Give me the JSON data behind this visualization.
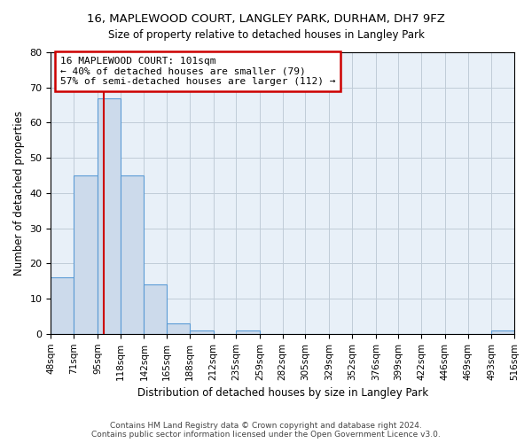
{
  "title": "16, MAPLEWOOD COURT, LANGLEY PARK, DURHAM, DH7 9FZ",
  "subtitle": "Size of property relative to detached houses in Langley Park",
  "xlabel": "Distribution of detached houses by size in Langley Park",
  "ylabel": "Number of detached properties",
  "bin_edges": [
    48,
    71,
    95,
    118,
    142,
    165,
    188,
    212,
    235,
    259,
    282,
    305,
    329,
    352,
    376,
    399,
    422,
    446,
    469,
    493,
    516
  ],
  "bin_counts": [
    16,
    45,
    67,
    45,
    14,
    3,
    1,
    0,
    1,
    0,
    0,
    0,
    0,
    0,
    0,
    0,
    0,
    0,
    0,
    1
  ],
  "bar_color": "#ccdaeb",
  "bar_edge_color": "#5b9bd5",
  "property_size": 101,
  "vline_color": "#cc0000",
  "annotation_box_color": "#cc0000",
  "annotation_line1": "16 MAPLEWOOD COURT: 101sqm",
  "annotation_line2": "← 40% of detached houses are smaller (79)",
  "annotation_line3": "57% of semi-detached houses are larger (112) →",
  "ylim": [
    0,
    80
  ],
  "yticks": [
    0,
    10,
    20,
    30,
    40,
    50,
    60,
    70,
    80
  ],
  "footer": "Contains HM Land Registry data © Crown copyright and database right 2024.\nContains public sector information licensed under the Open Government Licence v3.0.",
  "background_color": "#ffffff",
  "plot_bg_color": "#e8f0f8",
  "grid_color": "#c0ccd8"
}
